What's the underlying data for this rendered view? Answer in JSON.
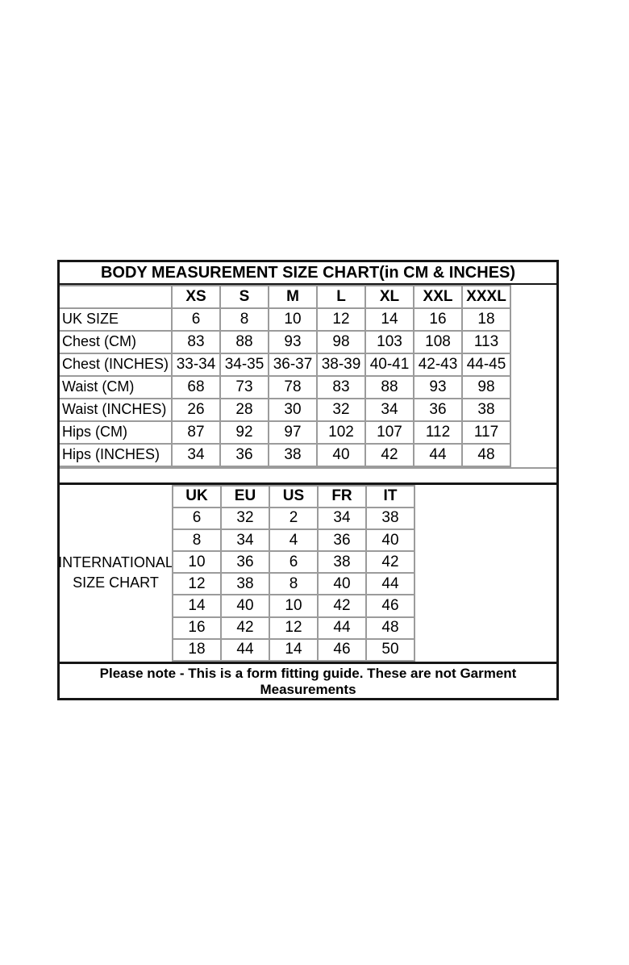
{
  "colors": {
    "background": "#ffffff",
    "outer_border": "#161616",
    "grid_line": "#9b9b9b",
    "text": "#000000"
  },
  "chart_data": [
    {
      "type": "table",
      "title": "BODY MEASUREMENT SIZE CHART(in CM & INCHES)",
      "columns": [
        "",
        "XS",
        "S",
        "M",
        "L",
        "XL",
        "XXL",
        "XXXL"
      ],
      "rows": [
        [
          "UK SIZE",
          "6",
          "8",
          "10",
          "12",
          "14",
          "16",
          "18"
        ],
        [
          "Chest (CM)",
          "83",
          "88",
          "93",
          "98",
          "103",
          "108",
          "113"
        ],
        [
          "Chest (INCHES)",
          "33-34",
          "34-35",
          "36-37",
          "38-39",
          "40-41",
          "42-43",
          "44-45"
        ],
        [
          "Waist (CM)",
          "68",
          "73",
          "78",
          "83",
          "88",
          "93",
          "98"
        ],
        [
          "Waist (INCHES)",
          "26",
          "28",
          "30",
          "32",
          "34",
          "36",
          "38"
        ],
        [
          "Hips (CM)",
          "87",
          "92",
          "97",
          "102",
          "107",
          "112",
          "117"
        ],
        [
          "Hips (INCHES)",
          "34",
          "36",
          "38",
          "40",
          "42",
          "44",
          "48"
        ]
      ]
    },
    {
      "type": "table",
      "title": "INTERNATIONAL SIZE CHART",
      "title_lines": [
        "INTERNATIONAL",
        "SIZE CHART"
      ],
      "columns": [
        "UK",
        "EU",
        "US",
        "FR",
        "IT"
      ],
      "rows": [
        [
          "6",
          "32",
          "2",
          "34",
          "38"
        ],
        [
          "8",
          "34",
          "4",
          "36",
          "40"
        ],
        [
          "10",
          "36",
          "6",
          "38",
          "42"
        ],
        [
          "12",
          "38",
          "8",
          "40",
          "44"
        ],
        [
          "14",
          "40",
          "10",
          "42",
          "46"
        ],
        [
          "16",
          "42",
          "12",
          "44",
          "48"
        ],
        [
          "18",
          "44",
          "14",
          "46",
          "50"
        ]
      ]
    }
  ],
  "footer": {
    "note_line1": "Please note - This is a form fitting guide. These are not Garment",
    "note_line2": "Measurements"
  }
}
